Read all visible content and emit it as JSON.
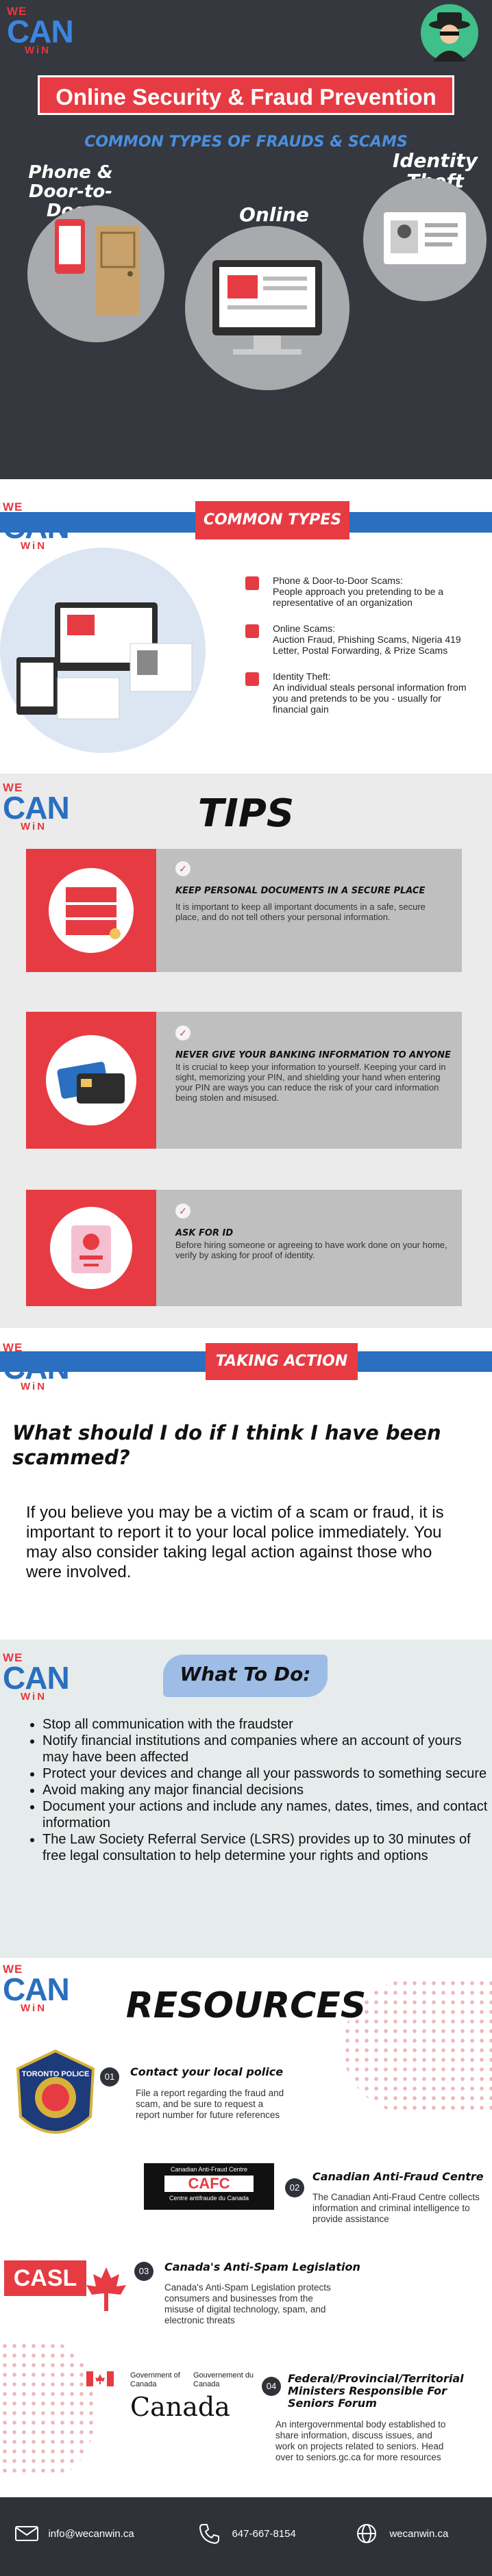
{
  "logo": {
    "we": "WE",
    "can": "CAN",
    "win": "WiN"
  },
  "hero": {
    "title": "Online Security & Fraud Prevention",
    "subtitle": "COMMON TYPES OF FRAUDS & SCAMS",
    "labels": {
      "phone_door": "Phone & Door-to-Door",
      "online": "Online",
      "identity": "Identity Theft"
    }
  },
  "common_types": {
    "banner": "COMMON TYPES",
    "items": [
      {
        "title": "Phone & Door-to-Door Scams:",
        "body": "People approach you pretending to be a representative of an organization"
      },
      {
        "title": "Online Scams:",
        "body": "Auction Fraud, Phishing Scams, Nigeria 419 Letter, Postal Forwarding, & Prize Scams"
      },
      {
        "title": "Identity Theft:",
        "body": "An individual steals personal information from you and pretends to be you - usually for financial gain"
      }
    ]
  },
  "tips": {
    "heading": "TIPS",
    "items": [
      {
        "title": "KEEP PERSONAL DOCUMENTS IN A SECURE PLACE",
        "body": "It is important to keep all important documents in a safe, secure place, and do not tell others your personal information."
      },
      {
        "title": "NEVER GIVE YOUR BANKING INFORMATION TO ANYONE",
        "body": "It is crucial to keep your information to yourself. Keeping your card in sight, memorizing your PIN, and shielding your hand when entering your PIN are ways you can reduce the risk of your card information being stolen and misused."
      },
      {
        "title": "ASK FOR ID",
        "body": "Before hiring someone or agreeing to have work done on your home, verify by asking for proof of identity."
      }
    ]
  },
  "taking_action": {
    "banner": "TAKING ACTION",
    "question": "What should I do if I think I have been scammed?",
    "body": "If you believe you may be a victim of a scam or fraud, it is important to report it to your local police immediately. You may also consider taking legal action against those who were involved."
  },
  "what_to_do": {
    "heading": "What To Do:",
    "items": [
      "Stop all communication with the fraudster",
      "Notify financial institutions and companies where an account of yours may have been affected",
      "Protect your devices and change all your passwords to something secure",
      "Avoid making any major financial decisions",
      "Document your actions and include any names, dates, times, and contact information",
      "The Law Society Referral Service (LSRS) provides up to 30 minutes of free legal consultation to help determine your rights and options"
    ]
  },
  "resources": {
    "heading": "RESOURCES",
    "items": [
      {
        "num": "01",
        "title": "Contact your local police",
        "body": "File a report regarding the fraud and scam, and be sure to request a report number for future references",
        "logo_text": "TORONTO POLICE"
      },
      {
        "num": "02",
        "title": "Canadian Anti-Fraud Centre",
        "body": "The Canadian Anti-Fraud Centre collects information and criminal intelligence to provide assistance",
        "logo_text": "CAFC",
        "logo_top": "Canadian Anti-Fraud Centre",
        "logo_bottom": "Centre antifraude du Canada"
      },
      {
        "num": "03",
        "title": "Canada's Anti-Spam Legislation",
        "body": "Canada's Anti-Spam Legislation protects consumers and businesses from the misuse of digital technology, spam, and electronic threats",
        "logo_text": "CASL"
      },
      {
        "num": "04",
        "title": "Federal/Provincial/Territorial Ministers Responsible For Seniors Forum",
        "body": "An intergovernmental body established to share information, discuss issues, and work on projects related to seniors. Head over to seniors.gc.ca for more resources",
        "logo_gov_en": "Government of Canada",
        "logo_gov_fr": "Gouvernement du Canada",
        "logo_word": "Canada"
      }
    ]
  },
  "footer": {
    "email": "info@wecanwin.ca",
    "phone": "647-667-8154",
    "web": "wecanwin.ca"
  },
  "colors": {
    "red": "#e63b43",
    "blue": "#2a6fc0",
    "dark": "#2f3238"
  }
}
